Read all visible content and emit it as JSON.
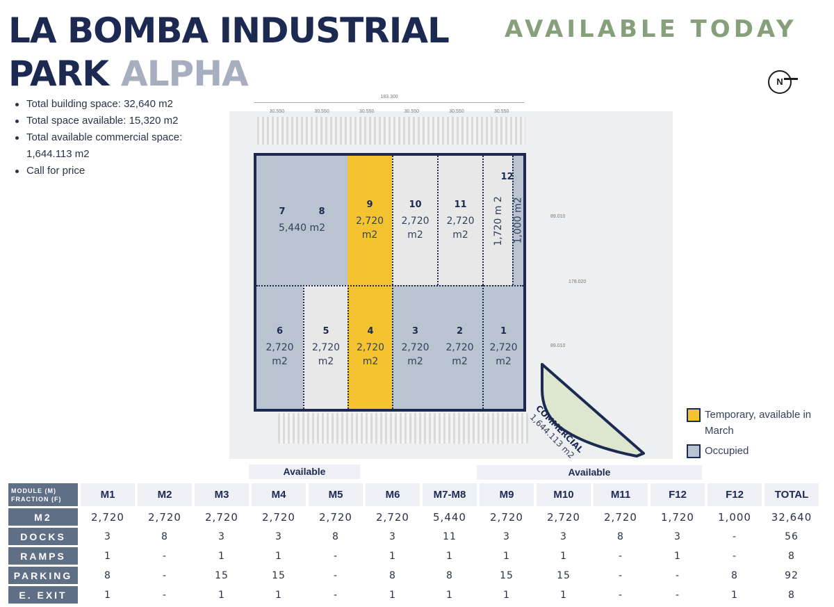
{
  "header": {
    "title_line1": "LA BOMBA INDUSTRIAL",
    "title_park": "PARK",
    "title_alpha": "ALPHA",
    "availability": "AVAILABLE TODAY",
    "north_label": "N"
  },
  "bullets": [
    "Total building space: 32,640 m2",
    "Total space available: 15,320 m2",
    "Total available commercial space: 1,644.113 m2",
    "Call for price"
  ],
  "site_dimensions": {
    "total_width": "183.300",
    "bays": [
      "30.550",
      "30.550",
      "30.550",
      "30.550",
      "30.550",
      "30.550"
    ],
    "side_upper": "89.010",
    "side_total": "178.020",
    "side_lower": "89.010"
  },
  "plan": {
    "modules": [
      {
        "num": "7",
        "num_b": "8",
        "area": "5,440 m2",
        "status": "occupied"
      },
      {
        "num": "9",
        "area_a": "2,720",
        "area_b": "m2",
        "status": "temporary"
      },
      {
        "num": "10",
        "area_a": "2,720",
        "area_b": "m2",
        "status": "available"
      },
      {
        "num": "11",
        "area_a": "2,720",
        "area_b": "m2",
        "status": "available"
      },
      {
        "num": "12",
        "area_a": "1,720 m 2",
        "status": "available"
      },
      {
        "area_a": "1,000 m2",
        "status": "occupied"
      },
      {
        "num": "6",
        "area_a": "2,720",
        "area_b": "m2",
        "status": "occupied"
      },
      {
        "num": "5",
        "area_a": "2,720",
        "area_b": "m2",
        "status": "available"
      },
      {
        "num": "4",
        "area_a": "2,720",
        "area_b": "m2",
        "status": "temporary"
      },
      {
        "num": "3",
        "area_a": "2,720",
        "area_b": "m2",
        "status": "occupied"
      },
      {
        "num": "2",
        "area_a": "2,720",
        "area_b": "m2",
        "status": "occupied"
      },
      {
        "num": "1",
        "area_a": "2,720",
        "area_b": "m2",
        "status": "occupied"
      }
    ],
    "commercial_label": "COMMERCIAL",
    "commercial_area": "1,644.113 m2"
  },
  "legend": {
    "temporary": "Temporary, available in March",
    "occupied": "Occupied"
  },
  "colors": {
    "navy": "#1c2a52",
    "occupied": "#b9c4d0",
    "temporary": "#f4c430",
    "available": "#e8e8e8",
    "commercial": "#dde7cf",
    "accent_green": "#86a07c"
  },
  "table": {
    "available_label_1": "Available",
    "available_label_2": "Available",
    "corner_line1": "MODULE (M)",
    "corner_line2": "FRACTION (F)",
    "columns": [
      "M1",
      "M2",
      "M3",
      "M4",
      "M5",
      "M6",
      "M7-M8",
      "M9",
      "M10",
      "M11",
      "F12",
      "F12",
      "TOTAL"
    ],
    "rows": [
      {
        "label": "M2",
        "values": [
          "2,720",
          "2,720",
          "2,720",
          "2,720",
          "2,720",
          "2,720",
          "5,440",
          "2,720",
          "2,720",
          "2,720",
          "1,720",
          "1,000",
          "32,640"
        ]
      },
      {
        "label": "DOCKS",
        "values": [
          "3",
          "8",
          "3",
          "3",
          "8",
          "3",
          "11",
          "3",
          "3",
          "8",
          "3",
          "-",
          "56"
        ]
      },
      {
        "label": "RAMPS",
        "values": [
          "1",
          "-",
          "1",
          "1",
          "-",
          "1",
          "1",
          "1",
          "1",
          "-",
          "1",
          "-",
          "8"
        ]
      },
      {
        "label": "PARKING",
        "values": [
          "8",
          "-",
          "15",
          "15",
          "-",
          "8",
          "8",
          "15",
          "15",
          "-",
          "-",
          "8",
          "92"
        ]
      },
      {
        "label": "E. EXIT",
        "values": [
          "1",
          "-",
          "1",
          "1",
          "-",
          "1",
          "1",
          "1",
          "1",
          "-",
          "-",
          "1",
          "8"
        ]
      }
    ]
  }
}
